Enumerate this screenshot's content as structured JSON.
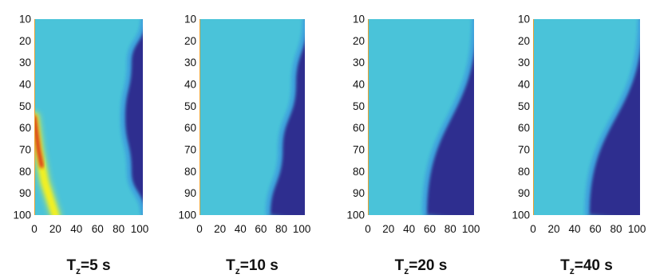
{
  "figure": {
    "colors": {
      "background_field": "#4ac3d9",
      "low": "#2e2f8f",
      "edge_glow": "#3fb8f0",
      "hot_red": "#d8261a",
      "hot_yellow": "#f2f020",
      "hot_green": "#a7e07a"
    }
  },
  "chart_data": [
    {
      "type": "heatmap",
      "title_main": "T",
      "title_sub": "z",
      "title_rest": "=5 s",
      "x_ticks": [
        "0",
        "20",
        "40",
        "60",
        "80",
        "100"
      ],
      "y_ticks": [
        "10",
        "20",
        "30",
        "40",
        "50",
        "60",
        "70",
        "80",
        "90",
        "100"
      ],
      "xlim": [
        0,
        103
      ],
      "ylim": [
        10,
        100
      ],
      "front": {
        "y": [
          10,
          30,
          55,
          80,
          100
        ],
        "x": [
          103,
          90,
          84,
          90,
          103
        ]
      },
      "hotspot": {
        "x_at_y": [
          [
            55,
            0
          ],
          [
            70,
            4
          ],
          [
            85,
            10
          ],
          [
            100,
            20
          ]
        ]
      }
    },
    {
      "type": "heatmap",
      "title_main": "T",
      "title_sub": "z",
      "title_rest": "=10 s",
      "x_ticks": [
        "0",
        "20",
        "40",
        "60",
        "80",
        "100"
      ],
      "y_ticks": [
        "10",
        "20",
        "30",
        "40",
        "50",
        "60",
        "70",
        "80",
        "90",
        "100"
      ],
      "xlim": [
        0,
        103
      ],
      "ylim": [
        10,
        100
      ],
      "front": {
        "y": [
          10,
          40,
          70,
          100
        ],
        "x": [
          103,
          92,
          79,
          67
        ]
      }
    },
    {
      "type": "heatmap",
      "title_main": "T",
      "title_sub": "z",
      "title_rest": "=20 s",
      "x_ticks": [
        "0",
        "20",
        "40",
        "60",
        "80",
        "100"
      ],
      "y_ticks": [
        "10",
        "20",
        "30",
        "40",
        "50",
        "60",
        "70",
        "80",
        "90",
        "100"
      ],
      "xlim": [
        0,
        103
      ],
      "ylim": [
        10,
        100
      ],
      "front": {
        "y": [
          10,
          100
        ],
        "x": [
          103,
          55
        ]
      }
    },
    {
      "type": "heatmap",
      "title_main": "T",
      "title_sub": "z",
      "title_rest": "=40 s",
      "x_ticks": [
        "0",
        "20",
        "40",
        "60",
        "80",
        "100"
      ],
      "y_ticks": [
        "10",
        "20",
        "30",
        "40",
        "50",
        "60",
        "70",
        "80",
        "90",
        "100"
      ],
      "xlim": [
        0,
        103
      ],
      "ylim": [
        10,
        100
      ],
      "front": {
        "y": [
          10,
          100
        ],
        "x": [
          103,
          52
        ]
      }
    }
  ]
}
